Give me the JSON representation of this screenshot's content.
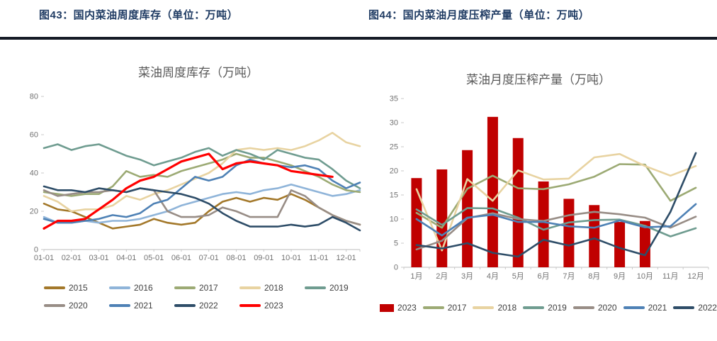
{
  "header": {
    "left_title": "图43：国内菜油周度库存（单位：万吨）",
    "right_title": "图44：国内菜油月度压榨产量（单位：万吨）"
  },
  "colors": {
    "header_text": "#1F3B63",
    "divider": "#151B26",
    "axis_line": "#C9C9C9",
    "tick_text": "#737373",
    "bar_2023": "#C00000",
    "line_2023": "#FF0000"
  },
  "chart_data": [
    {
      "id": "weekly-inventory",
      "type": "line",
      "title": "菜油周度库存（万吨）",
      "x": [
        "01-01",
        "01-15",
        "02-01",
        "02-15",
        "03-01",
        "03-15",
        "04-01",
        "04-15",
        "05-01",
        "05-15",
        "06-01",
        "06-15",
        "07-01",
        "07-15",
        "08-01",
        "08-15",
        "09-01",
        "09-15",
        "10-01",
        "10-15",
        "11-01",
        "11-15",
        "12-01",
        "12-15"
      ],
      "x_tick_labels": [
        "01-01",
        "02-01",
        "03-01",
        "04-01",
        "05-01",
        "06-01",
        "07-01",
        "08-01",
        "09-01",
        "10-01",
        "11-01",
        "12-01"
      ],
      "ylim": [
        0,
        80
      ],
      "yticks": [
        0,
        20,
        40,
        60,
        80
      ],
      "grid": false,
      "legend_position": "bottom",
      "series": [
        {
          "name": "2015",
          "color": "#A3782A",
          "values": [
            24,
            21,
            20,
            17,
            14,
            11,
            12,
            13,
            16,
            14,
            13,
            14,
            20,
            25,
            27,
            25,
            27,
            26,
            29,
            26,
            22,
            18,
            15,
            13
          ]
        },
        {
          "name": "2016",
          "color": "#8FB4D9",
          "values": [
            17,
            14,
            14,
            15,
            14,
            15,
            15,
            16,
            18,
            20,
            23,
            25,
            27,
            29,
            30,
            29,
            31,
            32,
            34,
            32,
            30,
            28,
            29,
            31
          ]
        },
        {
          "name": "2017",
          "color": "#9CAA74",
          "values": [
            30,
            29,
            28,
            29,
            29,
            33,
            41,
            38,
            39,
            38,
            41,
            43,
            45,
            47,
            50,
            48,
            48,
            46,
            44,
            41,
            38,
            34,
            31,
            30
          ]
        },
        {
          "name": "2018",
          "color": "#E8D3A1",
          "values": [
            28,
            25,
            20,
            21,
            21,
            23,
            28,
            26,
            29,
            31,
            34,
            37,
            40,
            45,
            52,
            53,
            52,
            53,
            52,
            54,
            57,
            61,
            56,
            54
          ]
        },
        {
          "name": "2019",
          "color": "#6F9C90",
          "values": [
            53,
            55,
            52,
            54,
            55,
            52,
            49,
            47,
            44,
            46,
            48,
            51,
            53,
            49,
            52,
            50,
            47,
            52,
            50,
            48,
            47,
            42,
            36,
            32
          ]
        },
        {
          "name": "2020",
          "color": "#988D86",
          "values": [
            31,
            28,
            29,
            30,
            30,
            31,
            30,
            32,
            31,
            20,
            17,
            17,
            18,
            22,
            20,
            17,
            17,
            17,
            31,
            28,
            22,
            18,
            15,
            13
          ]
        },
        {
          "name": "2021",
          "color": "#4E81B5",
          "values": [
            16,
            14,
            14,
            15,
            16,
            18,
            17,
            19,
            24,
            26,
            32,
            38,
            36,
            38,
            44,
            47,
            45,
            44,
            43,
            44,
            42,
            36,
            32,
            35
          ]
        },
        {
          "name": "2022",
          "color": "#2E4D68",
          "values": [
            33,
            31,
            31,
            30,
            32,
            31,
            30,
            32,
            31,
            30,
            29,
            27,
            24,
            19,
            15,
            12,
            12,
            12,
            13,
            12,
            13,
            17,
            14,
            10
          ]
        },
        {
          "name": "2023",
          "color": "#FF0000",
          "values": [
            11,
            15,
            15,
            16,
            21,
            26,
            32,
            36,
            38,
            42,
            46,
            48,
            50,
            42,
            45,
            46,
            45,
            44,
            41,
            40,
            39,
            38,
            null,
            null
          ]
        }
      ]
    },
    {
      "id": "monthly-crush",
      "type": "bar+line",
      "title": "菜油月度压榨产量（万吨）",
      "categories": [
        "1月",
        "2月",
        "3月",
        "4月",
        "5月",
        "6月",
        "7月",
        "8月",
        "9月",
        "10月",
        "11月",
        "12月"
      ],
      "ylim": [
        0,
        35
      ],
      "yticks": [
        0,
        5,
        10,
        15,
        20,
        25,
        30,
        35
      ],
      "grid": false,
      "legend_position": "bottom",
      "bar_series": {
        "name": "2023",
        "color": "#C00000",
        "values": [
          18.5,
          20.3,
          24.3,
          31.2,
          26.8,
          17.8,
          14.2,
          12.9,
          9.4,
          9.6,
          null,
          null
        ]
      },
      "line_series": [
        {
          "name": "2017",
          "color": "#9CAA74",
          "values": [
            11.3,
            8.2,
            16.3,
            19.0,
            16.4,
            16.2,
            17.2,
            18.8,
            21.4,
            21.3,
            13.8,
            16.5
          ]
        },
        {
          "name": "2018",
          "color": "#E8D3A1",
          "values": [
            16.2,
            3.5,
            18.3,
            13.8,
            20.1,
            18.2,
            18.4,
            22.8,
            23.5,
            21.0,
            19.0,
            21.0
          ]
        },
        {
          "name": "2019",
          "color": "#6F9C90",
          "values": [
            12.0,
            8.8,
            12.3,
            12.2,
            10.3,
            7.8,
            9.3,
            9.8,
            9.9,
            8.6,
            6.4,
            8.1
          ]
        },
        {
          "name": "2020",
          "color": "#988D86",
          "values": [
            3.7,
            5.5,
            10.2,
            11.2,
            10.0,
            9.6,
            10.8,
            11.5,
            11.0,
            10.3,
            8.2,
            10.5
          ]
        },
        {
          "name": "2021",
          "color": "#4E81B5",
          "values": [
            10.0,
            6.6,
            10.3,
            10.9,
            9.4,
            9.4,
            8.5,
            8.2,
            9.7,
            8.3,
            8.5,
            13.1
          ]
        },
        {
          "name": "2022",
          "color": "#2E4D68",
          "values": [
            4.6,
            3.9,
            5.0,
            3.0,
            2.2,
            5.7,
            4.5,
            6.0,
            4.0,
            2.5,
            11.5,
            23.7
          ]
        }
      ]
    }
  ]
}
